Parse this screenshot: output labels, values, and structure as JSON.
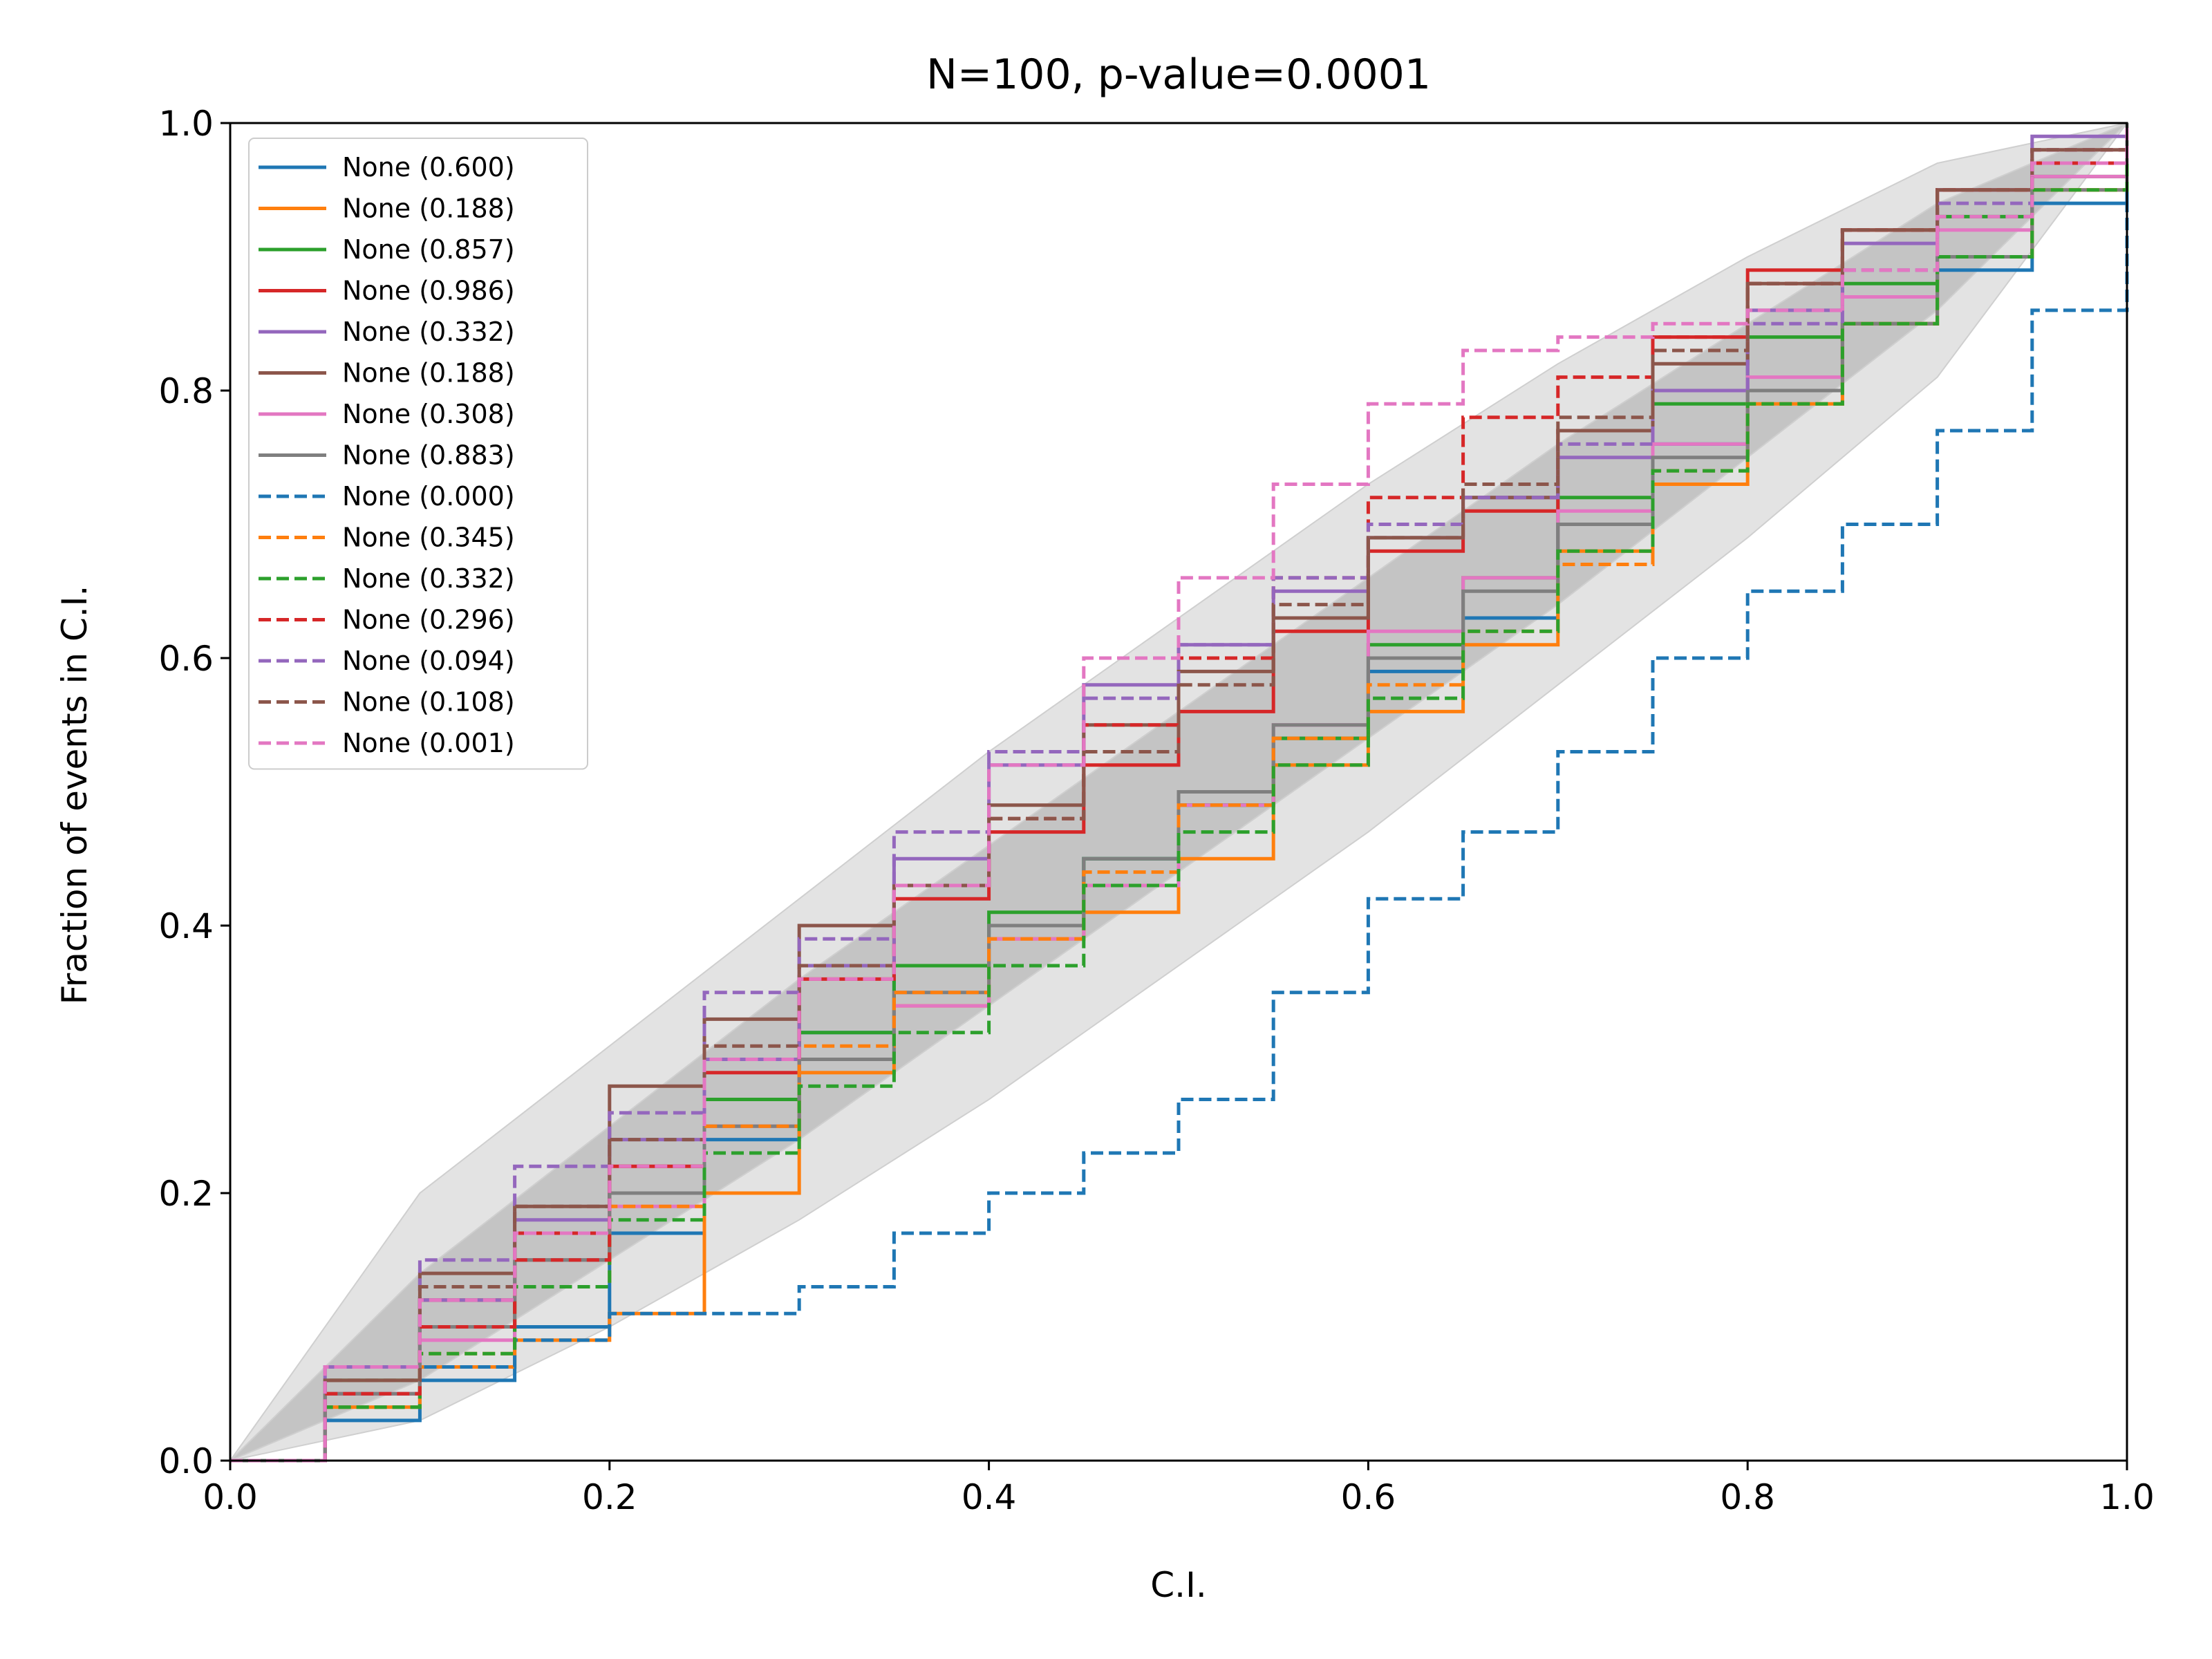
{
  "chart_data": {
    "type": "line",
    "title": "N=100, p-value=0.0001",
    "xlabel": "C.I.",
    "ylabel": "Fraction of events in C.I.",
    "xlim": [
      0,
      1
    ],
    "ylim": [
      0,
      1
    ],
    "x_ticks": [
      "0.0",
      "0.2",
      "0.4",
      "0.6",
      "0.8",
      "1.0"
    ],
    "y_ticks": [
      "0.0",
      "0.2",
      "0.4",
      "0.6",
      "0.8",
      "1.0"
    ],
    "grid": false,
    "legend_position": "top-left",
    "bands": [
      {
        "level": "outer",
        "color": "#e3e3e3",
        "x": [
          0,
          0.1,
          0.2,
          0.3,
          0.4,
          0.5,
          0.6,
          0.7,
          0.8,
          0.9,
          1.0
        ],
        "lower": [
          0,
          0.03,
          0.1,
          0.18,
          0.27,
          0.37,
          0.47,
          0.58,
          0.69,
          0.81,
          1.0
        ],
        "upper": [
          0,
          0.2,
          0.31,
          0.42,
          0.53,
          0.63,
          0.73,
          0.82,
          0.9,
          0.97,
          1.0
        ]
      },
      {
        "level": "inner",
        "color": "#c4c4c4",
        "x": [
          0,
          0.1,
          0.2,
          0.3,
          0.4,
          0.5,
          0.6,
          0.7,
          0.8,
          0.9,
          1.0
        ],
        "lower": [
          0,
          0.06,
          0.15,
          0.24,
          0.34,
          0.44,
          0.54,
          0.64,
          0.75,
          0.86,
          1.0
        ],
        "upper": [
          0,
          0.14,
          0.25,
          0.36,
          0.46,
          0.56,
          0.66,
          0.76,
          0.85,
          0.94,
          1.0
        ]
      }
    ],
    "series": [
      {
        "name": "None (0.600)",
        "color": "#1f77b4",
        "dash": "solid",
        "x": [
          0,
          0.05,
          0.1,
          0.15,
          0.2,
          0.25,
          0.3,
          0.35,
          0.4,
          0.45,
          0.5,
          0.55,
          0.6,
          0.65,
          0.7,
          0.75,
          0.8,
          0.85,
          0.9,
          0.95,
          1.0
        ],
        "y": [
          0,
          0.03,
          0.06,
          0.1,
          0.17,
          0.24,
          0.32,
          0.37,
          0.4,
          0.45,
          0.49,
          0.54,
          0.59,
          0.63,
          0.7,
          0.76,
          0.8,
          0.85,
          0.89,
          0.94,
          1.0
        ]
      },
      {
        "name": "None (0.188)",
        "color": "#ff7f0e",
        "dash": "solid",
        "x": [
          0,
          0.05,
          0.1,
          0.15,
          0.2,
          0.25,
          0.3,
          0.35,
          0.4,
          0.45,
          0.5,
          0.55,
          0.6,
          0.65,
          0.7,
          0.75,
          0.8,
          0.85,
          0.9,
          0.95,
          1.0
        ],
        "y": [
          0,
          0.04,
          0.07,
          0.09,
          0.11,
          0.2,
          0.29,
          0.34,
          0.39,
          0.41,
          0.45,
          0.52,
          0.56,
          0.61,
          0.68,
          0.73,
          0.79,
          0.85,
          0.9,
          0.95,
          1.0
        ]
      },
      {
        "name": "None (0.857)",
        "color": "#2ca02c",
        "dash": "solid",
        "x": [
          0,
          0.05,
          0.1,
          0.15,
          0.2,
          0.25,
          0.3,
          0.35,
          0.4,
          0.45,
          0.5,
          0.55,
          0.6,
          0.65,
          0.7,
          0.75,
          0.8,
          0.85,
          0.9,
          0.95,
          1.0
        ],
        "y": [
          0,
          0.06,
          0.1,
          0.15,
          0.2,
          0.27,
          0.32,
          0.37,
          0.41,
          0.45,
          0.49,
          0.54,
          0.61,
          0.66,
          0.72,
          0.79,
          0.84,
          0.88,
          0.93,
          0.96,
          1.0
        ]
      },
      {
        "name": "None (0.986)",
        "color": "#d62728",
        "dash": "solid",
        "x": [
          0,
          0.05,
          0.1,
          0.15,
          0.2,
          0.25,
          0.3,
          0.35,
          0.4,
          0.45,
          0.5,
          0.55,
          0.6,
          0.65,
          0.7,
          0.75,
          0.8,
          0.85,
          0.9,
          0.95,
          1.0
        ],
        "y": [
          0,
          0.05,
          0.12,
          0.17,
          0.22,
          0.29,
          0.36,
          0.42,
          0.47,
          0.52,
          0.56,
          0.62,
          0.68,
          0.71,
          0.77,
          0.84,
          0.89,
          0.92,
          0.95,
          0.97,
          1.0
        ]
      },
      {
        "name": "None (0.332)",
        "color": "#9467bd",
        "dash": "solid",
        "x": [
          0,
          0.05,
          0.1,
          0.15,
          0.2,
          0.25,
          0.3,
          0.35,
          0.4,
          0.45,
          0.5,
          0.55,
          0.6,
          0.65,
          0.7,
          0.75,
          0.8,
          0.85,
          0.9,
          0.95,
          1.0
        ],
        "y": [
          0,
          0.07,
          0.12,
          0.18,
          0.24,
          0.3,
          0.37,
          0.45,
          0.52,
          0.58,
          0.61,
          0.65,
          0.69,
          0.72,
          0.75,
          0.8,
          0.86,
          0.91,
          0.95,
          0.99,
          1.0
        ]
      },
      {
        "name": "None (0.188)",
        "color": "#8c564b",
        "dash": "solid",
        "x": [
          0,
          0.05,
          0.1,
          0.15,
          0.2,
          0.25,
          0.3,
          0.35,
          0.4,
          0.45,
          0.5,
          0.55,
          0.6,
          0.65,
          0.7,
          0.75,
          0.8,
          0.85,
          0.9,
          0.95,
          1.0
        ],
        "y": [
          0,
          0.06,
          0.14,
          0.19,
          0.28,
          0.33,
          0.4,
          0.43,
          0.49,
          0.55,
          0.59,
          0.63,
          0.69,
          0.72,
          0.77,
          0.82,
          0.88,
          0.92,
          0.95,
          0.98,
          1.0
        ]
      },
      {
        "name": "None (0.308)",
        "color": "#e377c2",
        "dash": "solid",
        "x": [
          0,
          0.05,
          0.1,
          0.15,
          0.2,
          0.25,
          0.3,
          0.35,
          0.4,
          0.45,
          0.5,
          0.55,
          0.6,
          0.65,
          0.7,
          0.75,
          0.8,
          0.85,
          0.9,
          0.95,
          1.0
        ],
        "y": [
          0,
          0.05,
          0.09,
          0.15,
          0.19,
          0.25,
          0.3,
          0.34,
          0.39,
          0.43,
          0.49,
          0.55,
          0.62,
          0.66,
          0.71,
          0.76,
          0.81,
          0.87,
          0.92,
          0.96,
          1.0
        ]
      },
      {
        "name": "None (0.883)",
        "color": "#7f7f7f",
        "dash": "solid",
        "x": [
          0,
          0.05,
          0.1,
          0.15,
          0.2,
          0.25,
          0.3,
          0.35,
          0.4,
          0.45,
          0.5,
          0.55,
          0.6,
          0.65,
          0.7,
          0.75,
          0.8,
          0.85,
          0.9,
          0.95,
          1.0
        ],
        "y": [
          0,
          0.05,
          0.1,
          0.15,
          0.2,
          0.25,
          0.3,
          0.35,
          0.4,
          0.45,
          0.5,
          0.55,
          0.6,
          0.65,
          0.7,
          0.75,
          0.8,
          0.85,
          0.9,
          0.95,
          1.0
        ]
      },
      {
        "name": "None (0.000)",
        "color": "#1f77b4",
        "dash": "dashed",
        "x": [
          0,
          0.05,
          0.1,
          0.15,
          0.2,
          0.25,
          0.3,
          0.35,
          0.4,
          0.45,
          0.5,
          0.55,
          0.6,
          0.65,
          0.7,
          0.75,
          0.8,
          0.85,
          0.9,
          0.95,
          1.0
        ],
        "y": [
          0,
          0.04,
          0.07,
          0.09,
          0.11,
          0.11,
          0.13,
          0.17,
          0.2,
          0.23,
          0.27,
          0.35,
          0.42,
          0.47,
          0.53,
          0.6,
          0.65,
          0.7,
          0.77,
          0.86,
          1.0
        ]
      },
      {
        "name": "None (0.345)",
        "color": "#ff7f0e",
        "dash": "dashed",
        "x": [
          0,
          0.05,
          0.1,
          0.15,
          0.2,
          0.25,
          0.3,
          0.35,
          0.4,
          0.45,
          0.5,
          0.55,
          0.6,
          0.65,
          0.7,
          0.75,
          0.8,
          0.85,
          0.9,
          0.95,
          1.0
        ],
        "y": [
          0,
          0.04,
          0.08,
          0.13,
          0.19,
          0.25,
          0.31,
          0.35,
          0.39,
          0.44,
          0.49,
          0.54,
          0.58,
          0.62,
          0.67,
          0.74,
          0.79,
          0.85,
          0.9,
          0.95,
          1.0
        ]
      },
      {
        "name": "None (0.332)",
        "color": "#2ca02c",
        "dash": "dashed",
        "x": [
          0,
          0.05,
          0.1,
          0.15,
          0.2,
          0.25,
          0.3,
          0.35,
          0.4,
          0.45,
          0.5,
          0.55,
          0.6,
          0.65,
          0.7,
          0.75,
          0.8,
          0.85,
          0.9,
          0.95,
          1.0
        ],
        "y": [
          0,
          0.04,
          0.08,
          0.13,
          0.18,
          0.23,
          0.28,
          0.32,
          0.37,
          0.43,
          0.47,
          0.52,
          0.57,
          0.62,
          0.68,
          0.74,
          0.79,
          0.85,
          0.9,
          0.95,
          1.0
        ]
      },
      {
        "name": "None (0.296)",
        "color": "#d62728",
        "dash": "dashed",
        "x": [
          0,
          0.05,
          0.1,
          0.15,
          0.2,
          0.25,
          0.3,
          0.35,
          0.4,
          0.45,
          0.5,
          0.55,
          0.6,
          0.65,
          0.7,
          0.75,
          0.8,
          0.85,
          0.9,
          0.95,
          1.0
        ],
        "y": [
          0,
          0.05,
          0.1,
          0.15,
          0.22,
          0.3,
          0.37,
          0.43,
          0.48,
          0.55,
          0.6,
          0.66,
          0.72,
          0.78,
          0.81,
          0.84,
          0.88,
          0.92,
          0.95,
          0.98,
          1.0
        ]
      },
      {
        "name": "None (0.094)",
        "color": "#9467bd",
        "dash": "dashed",
        "x": [
          0,
          0.05,
          0.1,
          0.15,
          0.2,
          0.25,
          0.3,
          0.35,
          0.4,
          0.45,
          0.5,
          0.55,
          0.6,
          0.65,
          0.7,
          0.75,
          0.8,
          0.85,
          0.9,
          0.95,
          1.0
        ],
        "y": [
          0,
          0.07,
          0.15,
          0.22,
          0.26,
          0.35,
          0.39,
          0.47,
          0.53,
          0.57,
          0.61,
          0.66,
          0.7,
          0.72,
          0.76,
          0.8,
          0.85,
          0.89,
          0.94,
          0.98,
          1.0
        ]
      },
      {
        "name": "None (0.108)",
        "color": "#8c564b",
        "dash": "dashed",
        "x": [
          0,
          0.05,
          0.1,
          0.15,
          0.2,
          0.25,
          0.3,
          0.35,
          0.4,
          0.45,
          0.5,
          0.55,
          0.6,
          0.65,
          0.7,
          0.75,
          0.8,
          0.85,
          0.9,
          0.95,
          1.0
        ],
        "y": [
          0,
          0.06,
          0.13,
          0.19,
          0.24,
          0.31,
          0.37,
          0.43,
          0.48,
          0.53,
          0.58,
          0.64,
          0.69,
          0.73,
          0.78,
          0.83,
          0.88,
          0.92,
          0.95,
          0.98,
          1.0
        ]
      },
      {
        "name": "None (0.001)",
        "color": "#e377c2",
        "dash": "dashed",
        "x": [
          0,
          0.05,
          0.1,
          0.15,
          0.2,
          0.25,
          0.3,
          0.35,
          0.4,
          0.45,
          0.5,
          0.55,
          0.6,
          0.65,
          0.7,
          0.75,
          0.8,
          0.85,
          0.9,
          0.95,
          1.0
        ],
        "y": [
          0,
          0.07,
          0.12,
          0.17,
          0.22,
          0.3,
          0.36,
          0.43,
          0.52,
          0.6,
          0.66,
          0.73,
          0.79,
          0.83,
          0.84,
          0.85,
          0.86,
          0.89,
          0.93,
          0.97,
          1.0
        ]
      }
    ]
  }
}
